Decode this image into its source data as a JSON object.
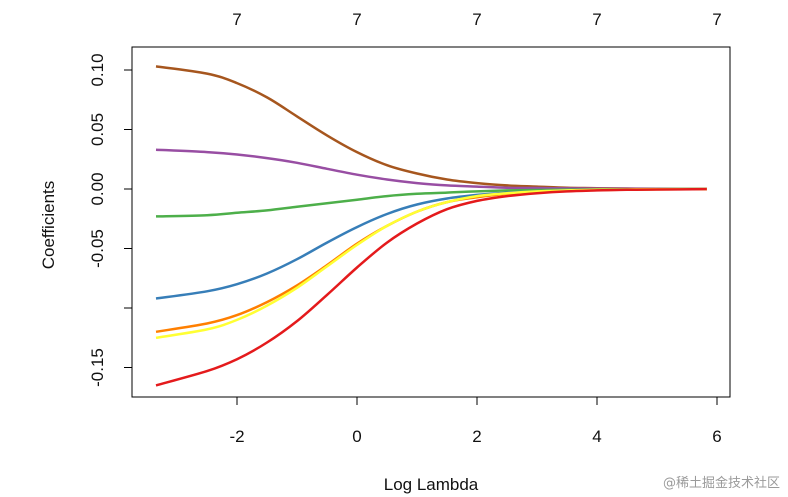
{
  "chart_data": {
    "type": "line",
    "title": "",
    "xlabel": "Log Lambda",
    "ylabel": "Coefficients",
    "xlim": [
      -3.5,
      6.1
    ],
    "ylim": [
      -0.175,
      0.12
    ],
    "x_ticks": [
      -2,
      0,
      2,
      4,
      6
    ],
    "y_ticks": [
      -0.15,
      -0.1,
      -0.05,
      0.0,
      0.05,
      0.1
    ],
    "y_tick_labels": [
      "-0.15",
      "",
      "-0.05",
      "0.00",
      "0.05",
      "0.10"
    ],
    "top_axis": {
      "ticks": [
        -2,
        0,
        2,
        4,
        6
      ],
      "labels": [
        "7",
        "7",
        "7",
        "7",
        "7"
      ]
    },
    "grid": false,
    "legend": "none",
    "x": [
      -3.35,
      -2.5,
      -2.0,
      -1.5,
      -1.0,
      -0.5,
      0.0,
      0.5,
      1.0,
      1.5,
      2.0,
      2.5,
      3.0,
      3.5,
      4.0,
      4.5,
      5.0,
      5.83
    ],
    "series": [
      {
        "color": "#a6561e",
        "values": [
          0.103,
          0.097,
          0.089,
          0.077,
          0.061,
          0.045,
          0.031,
          0.02,
          0.013,
          0.008,
          0.005,
          0.003,
          0.002,
          0.001,
          0.0007,
          0.0004,
          0.0002,
          0.0001
        ]
      },
      {
        "color": "#984ea3",
        "values": [
          0.033,
          0.031,
          0.029,
          0.026,
          0.022,
          0.017,
          0.012,
          0.008,
          0.005,
          0.003,
          0.002,
          0.001,
          0.0008,
          0.0005,
          0.0003,
          0.0002,
          0.0001,
          0.0
        ]
      },
      {
        "color": "#4daf4a",
        "values": [
          -0.023,
          -0.022,
          -0.02,
          -0.018,
          -0.015,
          -0.012,
          -0.009,
          -0.006,
          -0.004,
          -0.003,
          -0.002,
          -0.0012,
          -0.0008,
          -0.0005,
          -0.0003,
          -0.0002,
          -0.0001,
          0.0
        ]
      },
      {
        "color": "#377eb8",
        "values": [
          -0.092,
          -0.086,
          -0.08,
          -0.071,
          -0.059,
          -0.045,
          -0.032,
          -0.021,
          -0.013,
          -0.008,
          -0.005,
          -0.003,
          -0.002,
          -0.001,
          -0.0007,
          -0.0004,
          -0.0002,
          -0.0001
        ]
      },
      {
        "color": "#ff7f00",
        "values": [
          -0.12,
          -0.113,
          -0.106,
          -0.095,
          -0.081,
          -0.064,
          -0.046,
          -0.031,
          -0.019,
          -0.011,
          -0.007,
          -0.004,
          -0.0025,
          -0.0015,
          -0.0009,
          -0.0005,
          -0.0003,
          -0.0001
        ]
      },
      {
        "color": "#ffff33",
        "values": [
          -0.125,
          -0.118,
          -0.11,
          -0.098,
          -0.083,
          -0.065,
          -0.047,
          -0.031,
          -0.019,
          -0.011,
          -0.006,
          -0.0035,
          -0.002,
          -0.0012,
          -0.0007,
          -0.0004,
          -0.0002,
          -0.0001
        ]
      },
      {
        "color": "#e41a1c",
        "values": [
          -0.165,
          -0.153,
          -0.143,
          -0.129,
          -0.111,
          -0.089,
          -0.066,
          -0.045,
          -0.029,
          -0.017,
          -0.01,
          -0.006,
          -0.0035,
          -0.002,
          -0.0012,
          -0.0007,
          -0.0004,
          -0.0001
        ]
      }
    ]
  },
  "watermark": "@稀土掘金技术社区"
}
